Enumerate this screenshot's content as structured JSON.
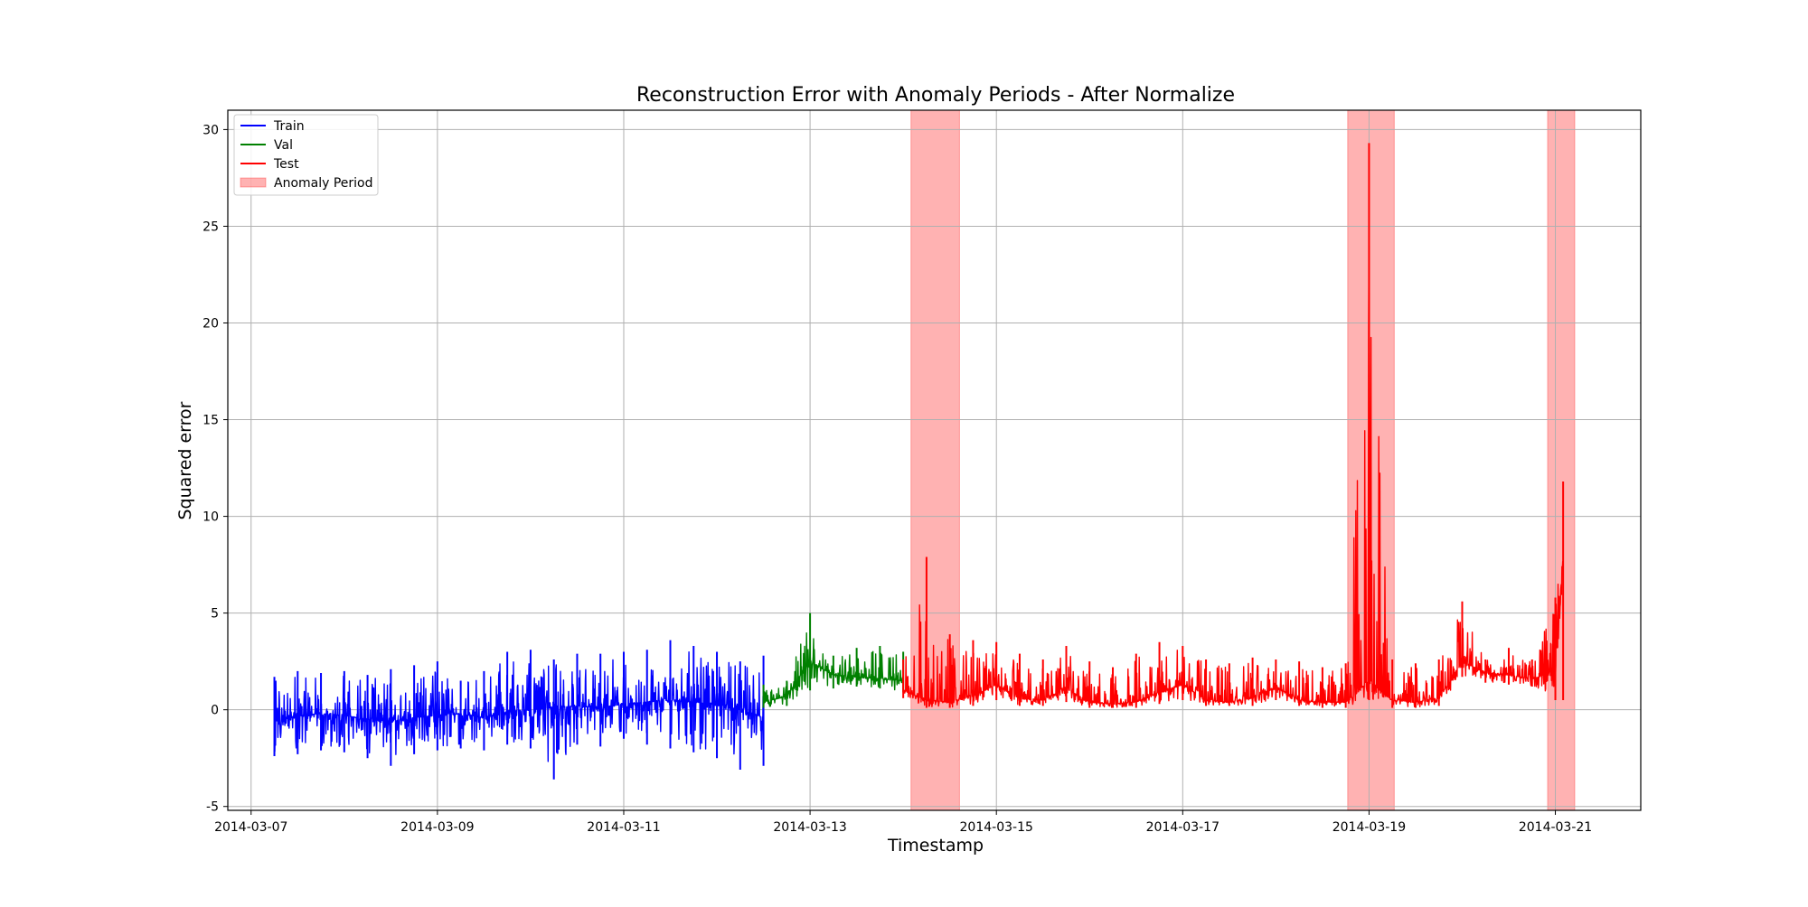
{
  "chart_data": {
    "type": "line",
    "title": "Reconstruction Error with Anomaly Periods - After Normalize",
    "xlabel": "Timestamp",
    "ylabel": "Squared error",
    "xlim": [
      "2014-03-06 18:00",
      "2014-03-21 22:00"
    ],
    "ylim": [
      -5.2,
      31
    ],
    "xticks": [
      "2014-03-07",
      "2014-03-09",
      "2014-03-11",
      "2014-03-13",
      "2014-03-15",
      "2014-03-17",
      "2014-03-19",
      "2014-03-21"
    ],
    "yticks": [
      -5,
      0,
      5,
      10,
      15,
      20,
      25,
      30
    ],
    "grid": true,
    "legend_position": "top-left",
    "legend": [
      {
        "label": "Train",
        "color": "#0000ff",
        "kind": "line"
      },
      {
        "label": "Val",
        "color": "#008000",
        "kind": "line"
      },
      {
        "label": "Test",
        "color": "#ff0000",
        "kind": "line"
      },
      {
        "label": "Anomaly Period",
        "color": "#ff9999",
        "kind": "patch"
      }
    ],
    "anomaly_periods": [
      {
        "start": "2014-03-14 02:00",
        "end": "2014-03-14 14:30"
      },
      {
        "start": "2014-03-18 18:30",
        "end": "2014-03-19 06:30"
      },
      {
        "start": "2014-03-20 22:00",
        "end": "2014-03-21 05:00"
      }
    ],
    "series": [
      {
        "name": "Train",
        "color": "#0000ff",
        "x": [
          "2014-03-07 06:00",
          "2014-03-07 12:00",
          "2014-03-07 18:00",
          "2014-03-08 00:00",
          "2014-03-08 06:00",
          "2014-03-08 12:00",
          "2014-03-08 18:00",
          "2014-03-09 00:00",
          "2014-03-09 06:00",
          "2014-03-09 12:00",
          "2014-03-09 18:00",
          "2014-03-10 00:00",
          "2014-03-10 06:00",
          "2014-03-10 12:00",
          "2014-03-10 18:00",
          "2014-03-11 00:00",
          "2014-03-11 06:00",
          "2014-03-11 12:00",
          "2014-03-11 18:00",
          "2014-03-12 00:00",
          "2014-03-12 06:00",
          "2014-03-12 12:00"
        ],
        "y": [
          -0.6,
          -0.3,
          -0.2,
          -0.3,
          -0.5,
          -0.6,
          -0.4,
          -0.3,
          -0.2,
          -0.4,
          -0.1,
          0.0,
          0.1,
          0.2,
          0.1,
          0.3,
          0.4,
          0.5,
          0.4,
          0.3,
          0.0,
          -0.4
        ],
        "high": [
          1.7,
          2.0,
          1.9,
          2.0,
          1.8,
          2.1,
          2.3,
          2.5,
          1.5,
          2.0,
          3.0,
          3.1,
          2.6,
          2.9,
          2.9,
          3.0,
          3.1,
          3.6,
          3.3,
          3.0,
          2.5,
          2.8
        ],
        "low": [
          -2.4,
          -2.3,
          -2.1,
          -2.2,
          -2.5,
          -2.9,
          -2.3,
          -2.1,
          -2.0,
          -2.1,
          -1.8,
          -2.0,
          -3.6,
          -1.8,
          -1.9,
          -1.5,
          -1.8,
          -2.0,
          -2.2,
          -2.5,
          -3.1,
          -2.9
        ]
      },
      {
        "name": "Val",
        "color": "#008000",
        "x": [
          "2014-03-12 12:00",
          "2014-03-12 18:00",
          "2014-03-13 00:00",
          "2014-03-13 06:00",
          "2014-03-13 12:00",
          "2014-03-13 18:00",
          "2014-03-14 00:00"
        ],
        "y": [
          0.4,
          0.7,
          2.5,
          1.8,
          1.7,
          1.6,
          1.5
        ],
        "high": [
          1.3,
          1.5,
          5.0,
          2.8,
          3.2,
          3.3,
          3.0
        ],
        "low": [
          0.1,
          0.2,
          1.0,
          1.1,
          1.2,
          1.1,
          0.9
        ]
      },
      {
        "name": "Test",
        "color": "#ff0000",
        "x": [
          "2014-03-14 00:00",
          "2014-03-14 06:00",
          "2014-03-14 12:00",
          "2014-03-14 18:00",
          "2014-03-15 00:00",
          "2014-03-15 06:00",
          "2014-03-15 12:00",
          "2014-03-15 18:00",
          "2014-03-16 00:00",
          "2014-03-16 06:00",
          "2014-03-16 12:00",
          "2014-03-16 18:00",
          "2014-03-17 00:00",
          "2014-03-17 06:00",
          "2014-03-17 12:00",
          "2014-03-17 18:00",
          "2014-03-18 00:00",
          "2014-03-18 06:00",
          "2014-03-18 12:00",
          "2014-03-18 18:00",
          "2014-03-19 00:00",
          "2014-03-19 06:00",
          "2014-03-19 12:00",
          "2014-03-19 18:00",
          "2014-03-20 00:00",
          "2014-03-20 06:00",
          "2014-03-20 12:00",
          "2014-03-20 18:00",
          "2014-03-21 00:00",
          "2014-03-21 02:00"
        ],
        "y": [
          1.0,
          0.5,
          0.4,
          0.7,
          1.3,
          0.6,
          0.5,
          1.1,
          0.4,
          0.3,
          0.4,
          0.9,
          1.3,
          0.5,
          0.4,
          0.6,
          1.2,
          0.5,
          0.4,
          0.4,
          1.5,
          0.5,
          0.4,
          0.6,
          2.5,
          1.9,
          1.8,
          1.6,
          2.0,
          8.0
        ],
        "high": [
          2.6,
          7.9,
          3.9,
          3.6,
          3.5,
          2.9,
          2.6,
          3.3,
          2.5,
          2.2,
          2.9,
          3.5,
          3.3,
          2.6,
          2.4,
          2.7,
          2.6,
          2.5,
          2.2,
          2.4,
          29.3,
          2.6,
          2.4,
          2.6,
          5.6,
          2.6,
          3.2,
          2.6,
          5.8,
          11.8
        ],
        "low": [
          0.6,
          0.1,
          0.1,
          0.2,
          0.5,
          0.2,
          0.2,
          0.4,
          0.1,
          0.1,
          0.1,
          0.3,
          0.5,
          0.2,
          0.2,
          0.2,
          0.5,
          0.2,
          0.1,
          0.1,
          0.5,
          0.1,
          0.1,
          0.2,
          1.7,
          1.4,
          1.3,
          1.2,
          0.5,
          0.5
        ]
      }
    ]
  }
}
